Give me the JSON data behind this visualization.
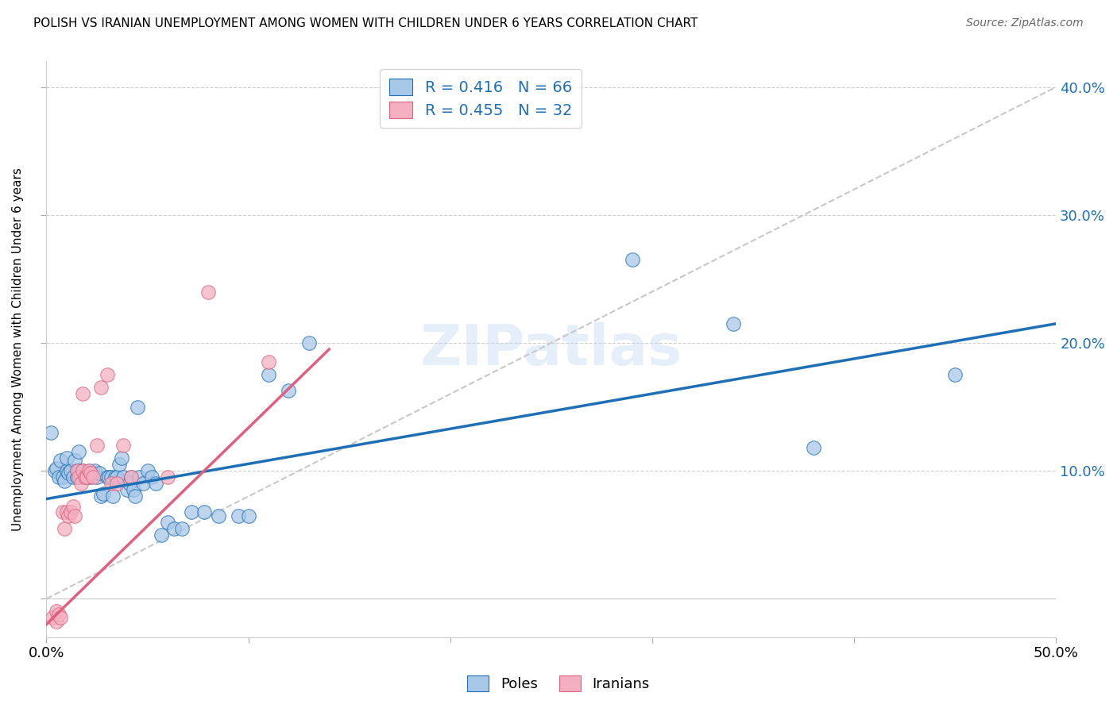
{
  "title": "POLISH VS IRANIAN UNEMPLOYMENT AMONG WOMEN WITH CHILDREN UNDER 6 YEARS CORRELATION CHART",
  "source": "Source: ZipAtlas.com",
  "ylabel": "Unemployment Among Women with Children Under 6 years",
  "xlim": [
    0.0,
    0.5
  ],
  "ylim": [
    -0.03,
    0.42
  ],
  "yticks": [
    0.0,
    0.1,
    0.2,
    0.3,
    0.4
  ],
  "ytick_labels": [
    "",
    "10.0%",
    "20.0%",
    "30.0%",
    "40.0%"
  ],
  "legend_label_poles": "Poles",
  "legend_label_iranians": "Iranians",
  "r_poles": "0.416",
  "n_poles": "66",
  "r_iranians": "0.455",
  "n_iranians": "32",
  "color_poles": "#a8c8e8",
  "color_iranians": "#f4b0c0",
  "trendline_poles_color": "#1e6fb5",
  "trendline_iranians_color": "#e06080",
  "trendline_diagonal_color": "#c8c8c8",
  "watermark": "ZIPatlas",
  "poles_x": [
    0.002,
    0.004,
    0.005,
    0.006,
    0.007,
    0.008,
    0.009,
    0.01,
    0.01,
    0.011,
    0.012,
    0.013,
    0.014,
    0.015,
    0.015,
    0.016,
    0.016,
    0.017,
    0.018,
    0.018,
    0.019,
    0.02,
    0.021,
    0.022,
    0.023,
    0.024,
    0.025,
    0.026,
    0.027,
    0.028,
    0.03,
    0.031,
    0.032,
    0.033,
    0.034,
    0.035,
    0.036,
    0.037,
    0.038,
    0.04,
    0.041,
    0.042,
    0.043,
    0.044,
    0.045,
    0.046,
    0.048,
    0.05,
    0.052,
    0.054,
    0.057,
    0.06,
    0.063,
    0.067,
    0.072,
    0.078,
    0.085,
    0.095,
    0.1,
    0.11,
    0.12,
    0.13,
    0.29,
    0.34,
    0.38,
    0.45
  ],
  "poles_y": [
    0.13,
    0.1,
    0.102,
    0.095,
    0.108,
    0.095,
    0.092,
    0.1,
    0.11,
    0.098,
    0.1,
    0.095,
    0.108,
    0.095,
    0.1,
    0.1,
    0.115,
    0.095,
    0.1,
    0.1,
    0.098,
    0.095,
    0.1,
    0.095,
    0.098,
    0.1,
    0.095,
    0.098,
    0.08,
    0.082,
    0.095,
    0.095,
    0.095,
    0.08,
    0.095,
    0.095,
    0.105,
    0.11,
    0.095,
    0.085,
    0.09,
    0.095,
    0.085,
    0.08,
    0.15,
    0.095,
    0.09,
    0.1,
    0.095,
    0.09,
    0.05,
    0.06,
    0.055,
    0.055,
    0.068,
    0.068,
    0.065,
    0.065,
    0.065,
    0.175,
    0.163,
    0.2,
    0.265,
    0.215,
    0.118,
    0.175
  ],
  "iranians_x": [
    0.003,
    0.005,
    0.005,
    0.006,
    0.007,
    0.008,
    0.009,
    0.01,
    0.011,
    0.012,
    0.013,
    0.014,
    0.015,
    0.016,
    0.017,
    0.018,
    0.018,
    0.019,
    0.02,
    0.021,
    0.022,
    0.023,
    0.025,
    0.027,
    0.03,
    0.032,
    0.035,
    0.038,
    0.042,
    0.06,
    0.08,
    0.11
  ],
  "iranians_y": [
    -0.015,
    -0.018,
    -0.01,
    -0.012,
    -0.015,
    0.068,
    0.055,
    0.068,
    0.065,
    0.068,
    0.072,
    0.065,
    0.1,
    0.095,
    0.09,
    0.1,
    0.16,
    0.095,
    0.095,
    0.1,
    0.098,
    0.095,
    0.12,
    0.165,
    0.175,
    0.09,
    0.09,
    0.12,
    0.095,
    0.095,
    0.24,
    0.185
  ],
  "trendline_poles_x0": 0.0,
  "trendline_poles_x1": 0.5,
  "trendline_poles_y0": 0.078,
  "trendline_poles_y1": 0.215,
  "trendline_iranians_x0": 0.0,
  "trendline_iranians_x1": 0.14,
  "trendline_iranians_y0": -0.02,
  "trendline_iranians_y1": 0.195
}
